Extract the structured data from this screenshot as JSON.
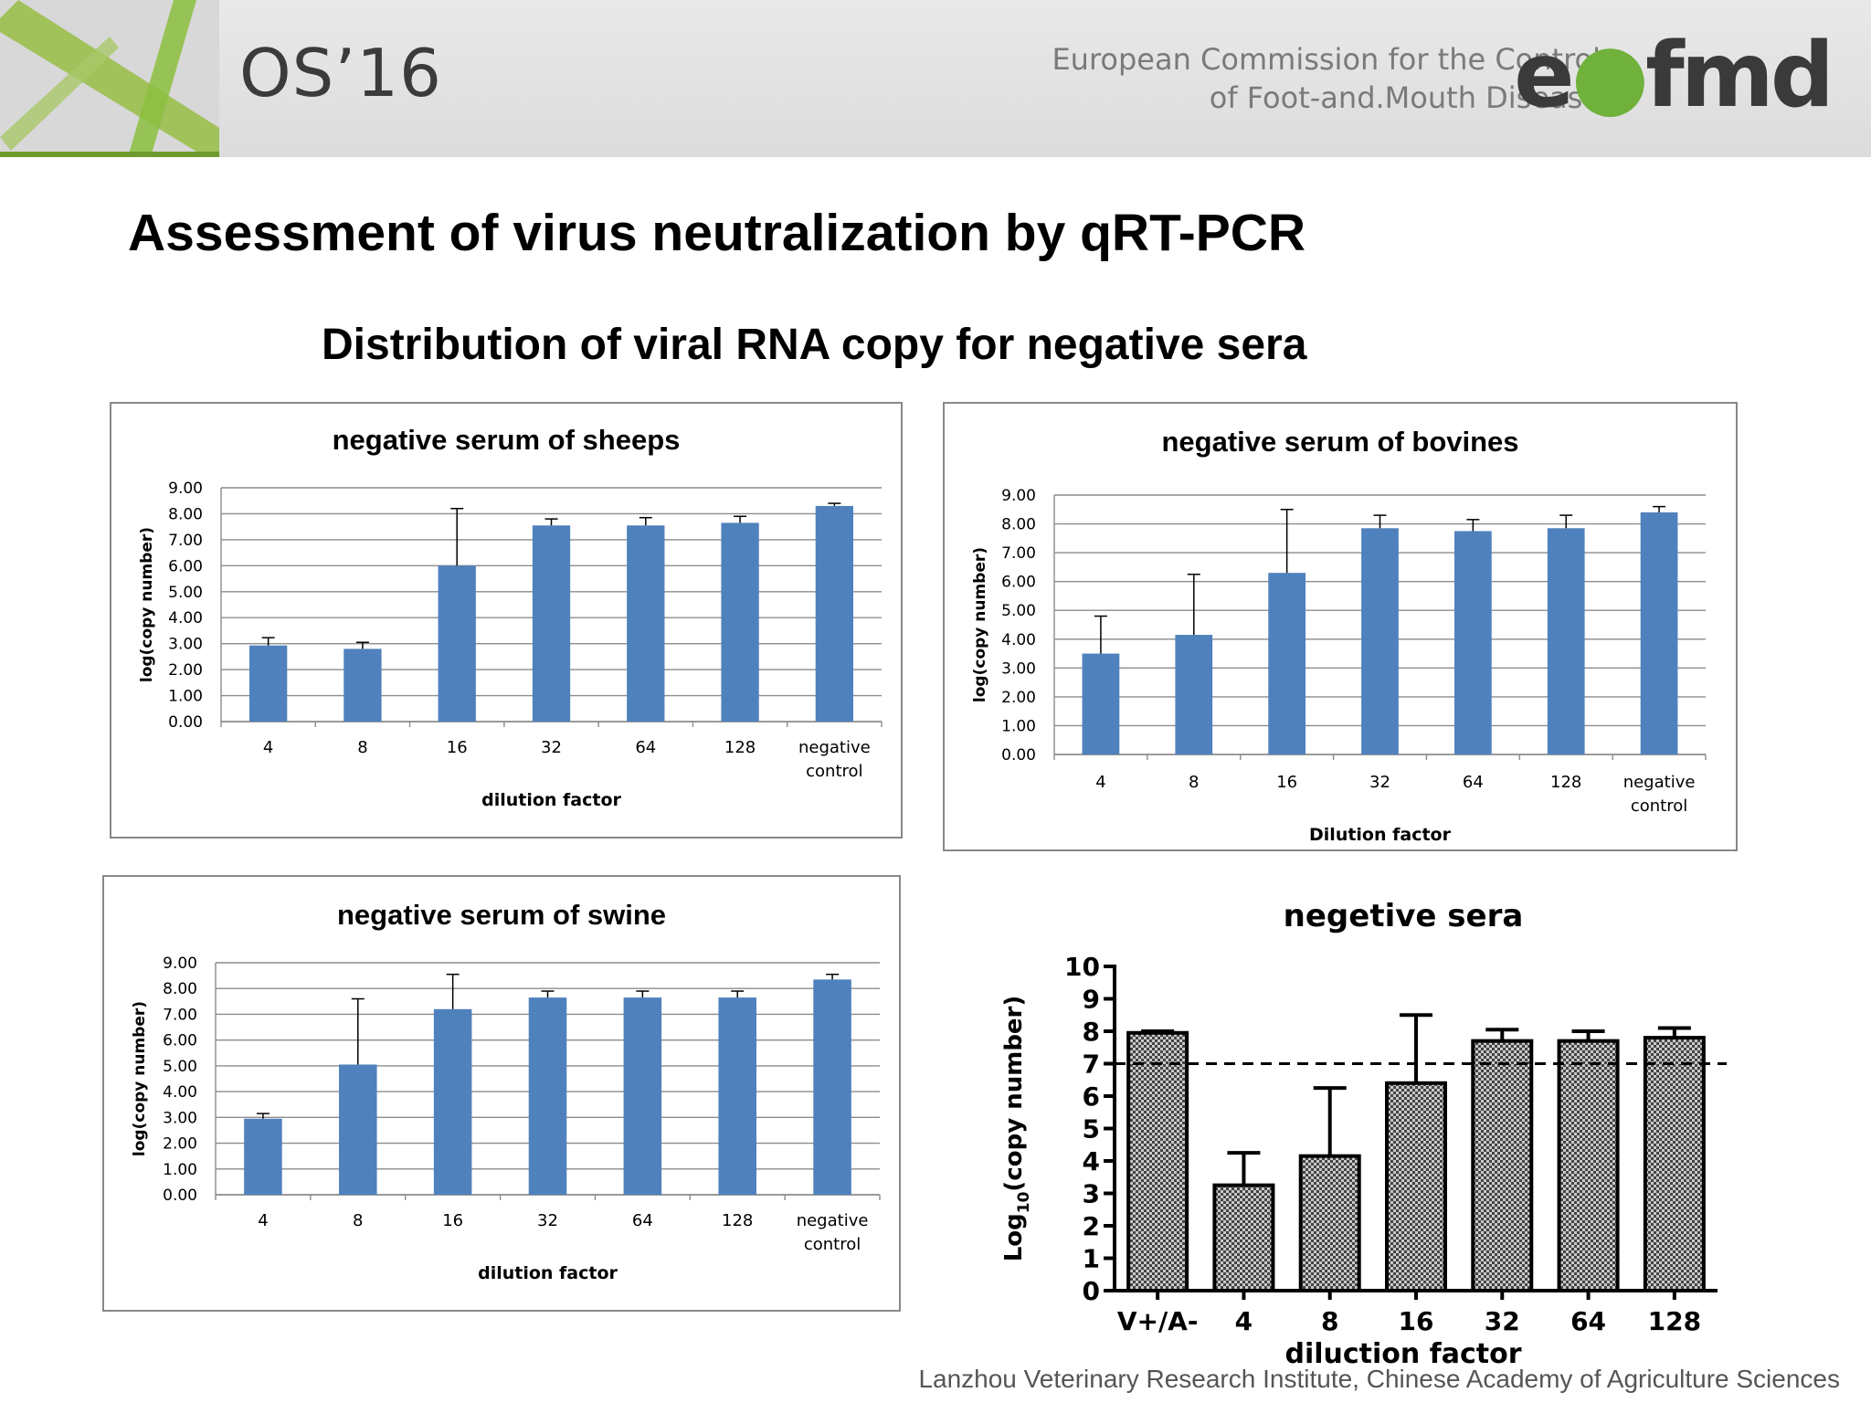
{
  "header": {
    "conference": "OS’16",
    "organization_line1": "European Commission for the Control",
    "organization_line2": "of Foot-and.Mouth Disease",
    "logo_text": "eufmd",
    "logo_leaf_color": "#6fb13b"
  },
  "slide": {
    "title": "Assessment of virus neutralization by qRT-PCR",
    "subtitle": "Distribution of viral RNA copy for negative sera"
  },
  "footer": {
    "credit": "Lanzhou Veterinary Research Institute, Chinese Academy of Agriculture Sciences"
  },
  "colors": {
    "bar_blue": "#4f81bd",
    "grid": "#8c8c8c",
    "pattern_dark": "#555555"
  },
  "chart_data": [
    {
      "id": "sheep",
      "type": "bar",
      "title": "negative serum of sheeps",
      "xlabel": "dilution factor",
      "ylabel": "log(copy number)",
      "ylim": [
        0,
        9
      ],
      "ytick_labels": [
        "0.00",
        "1.00",
        "2.00",
        "3.00",
        "4.00",
        "5.00",
        "6.00",
        "7.00",
        "8.00",
        "9.00"
      ],
      "categories": [
        "4",
        "8",
        "16",
        "32",
        "64",
        "128",
        "negative|control"
      ],
      "values": [
        2.93,
        2.8,
        6.0,
        7.55,
        7.55,
        7.65,
        8.3
      ],
      "errors": [
        0.3,
        0.25,
        2.2,
        0.25,
        0.3,
        0.25,
        0.1
      ],
      "grid": true
    },
    {
      "id": "bovine",
      "type": "bar",
      "title": "negative serum of bovines",
      "xlabel": "Dilution factor",
      "ylabel": "log(copy number)",
      "ylim": [
        0,
        9
      ],
      "ytick_labels": [
        "0.00",
        "1.00",
        "2.00",
        "3.00",
        "4.00",
        "5.00",
        "6.00",
        "7.00",
        "8.00",
        "9.00"
      ],
      "categories": [
        "4",
        "8",
        "16",
        "32",
        "64",
        "128",
        "negative|control"
      ],
      "values": [
        3.5,
        4.15,
        6.3,
        7.85,
        7.75,
        7.85,
        8.4
      ],
      "errors": [
        1.3,
        2.1,
        2.2,
        0.45,
        0.4,
        0.45,
        0.2
      ],
      "grid": true
    },
    {
      "id": "swine",
      "type": "bar",
      "title": "negative serum of swine",
      "xlabel": "dilution factor",
      "ylabel": "log(copy number)",
      "ylim": [
        0,
        9
      ],
      "ytick_labels": [
        "0.00",
        "1.00",
        "2.00",
        "3.00",
        "4.00",
        "5.00",
        "6.00",
        "7.00",
        "8.00",
        "9.00"
      ],
      "categories": [
        "4",
        "8",
        "16",
        "32",
        "64",
        "128",
        "negative|control"
      ],
      "values": [
        2.95,
        5.05,
        7.2,
        7.65,
        7.65,
        7.65,
        8.35
      ],
      "errors": [
        0.2,
        2.55,
        1.35,
        0.25,
        0.25,
        0.25,
        0.2
      ],
      "grid": true
    },
    {
      "id": "sera",
      "type": "bar",
      "title": "negetive sera",
      "xlabel": "diluction factor",
      "ylabel_main": "Log",
      "ylabel_sub": "10",
      "ylabel_rest": "(copy number)",
      "ylim": [
        0,
        10
      ],
      "ytick_labels": [
        "0",
        "1",
        "2",
        "3",
        "4",
        "5",
        "6",
        "7",
        "8",
        "9",
        "10"
      ],
      "categories": [
        "V+/A-",
        "4",
        "8",
        "16",
        "32",
        "64",
        "128"
      ],
      "values": [
        7.95,
        3.25,
        4.15,
        6.4,
        7.7,
        7.7,
        7.8
      ],
      "errors": [
        0.05,
        1.0,
        2.1,
        2.1,
        0.35,
        0.3,
        0.3
      ],
      "threshold": 7.0,
      "grid": false
    }
  ]
}
